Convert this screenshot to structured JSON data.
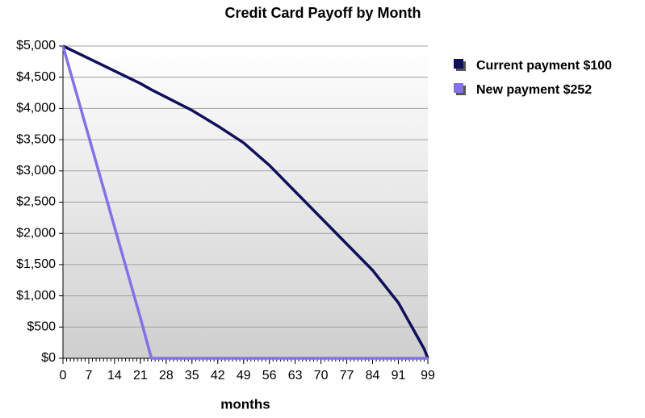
{
  "chart_data": {
    "type": "line",
    "title": "Credit Card Payoff by Month",
    "x_label": "months",
    "x": [
      0,
      7,
      14,
      21,
      24,
      28,
      35,
      42,
      49,
      56,
      63,
      70,
      77,
      84,
      91,
      98,
      99
    ],
    "series": [
      {
        "name": "Current payment $100",
        "color": "#10105a",
        "values": [
          5000,
          4800,
          4600,
          4400,
          4300,
          4180,
          3970,
          3720,
          3450,
          3090,
          2670,
          2250,
          1830,
          1410,
          890,
          150,
          0
        ]
      },
      {
        "name": "New payment $252",
        "color": "#8272e6",
        "values": [
          5000,
          3550,
          2100,
          650,
          0,
          0,
          0,
          0,
          0,
          0,
          0,
          0,
          0,
          0,
          0,
          0,
          0
        ]
      }
    ],
    "xlim": [
      0,
      99
    ],
    "xticks": [
      0,
      7,
      14,
      21,
      28,
      35,
      42,
      49,
      56,
      63,
      70,
      77,
      84,
      91,
      99
    ],
    "ylim": [
      0,
      5000
    ],
    "yticks": [
      {
        "value": 0,
        "label": "$0"
      },
      {
        "value": 500,
        "label": "$500"
      },
      {
        "value": 1000,
        "label": "$1,000"
      },
      {
        "value": 1500,
        "label": "$1,500"
      },
      {
        "value": 2000,
        "label": "$2,000"
      },
      {
        "value": 2500,
        "label": "$2,500"
      },
      {
        "value": 3000,
        "label": "$3,000"
      },
      {
        "value": 3500,
        "label": "$3,500"
      },
      {
        "value": 4000,
        "label": "$4,000"
      },
      {
        "value": 4500,
        "label": "$4,500"
      },
      {
        "value": 5000,
        "label": "$5,000"
      }
    ],
    "grid": true,
    "legend": "right"
  }
}
